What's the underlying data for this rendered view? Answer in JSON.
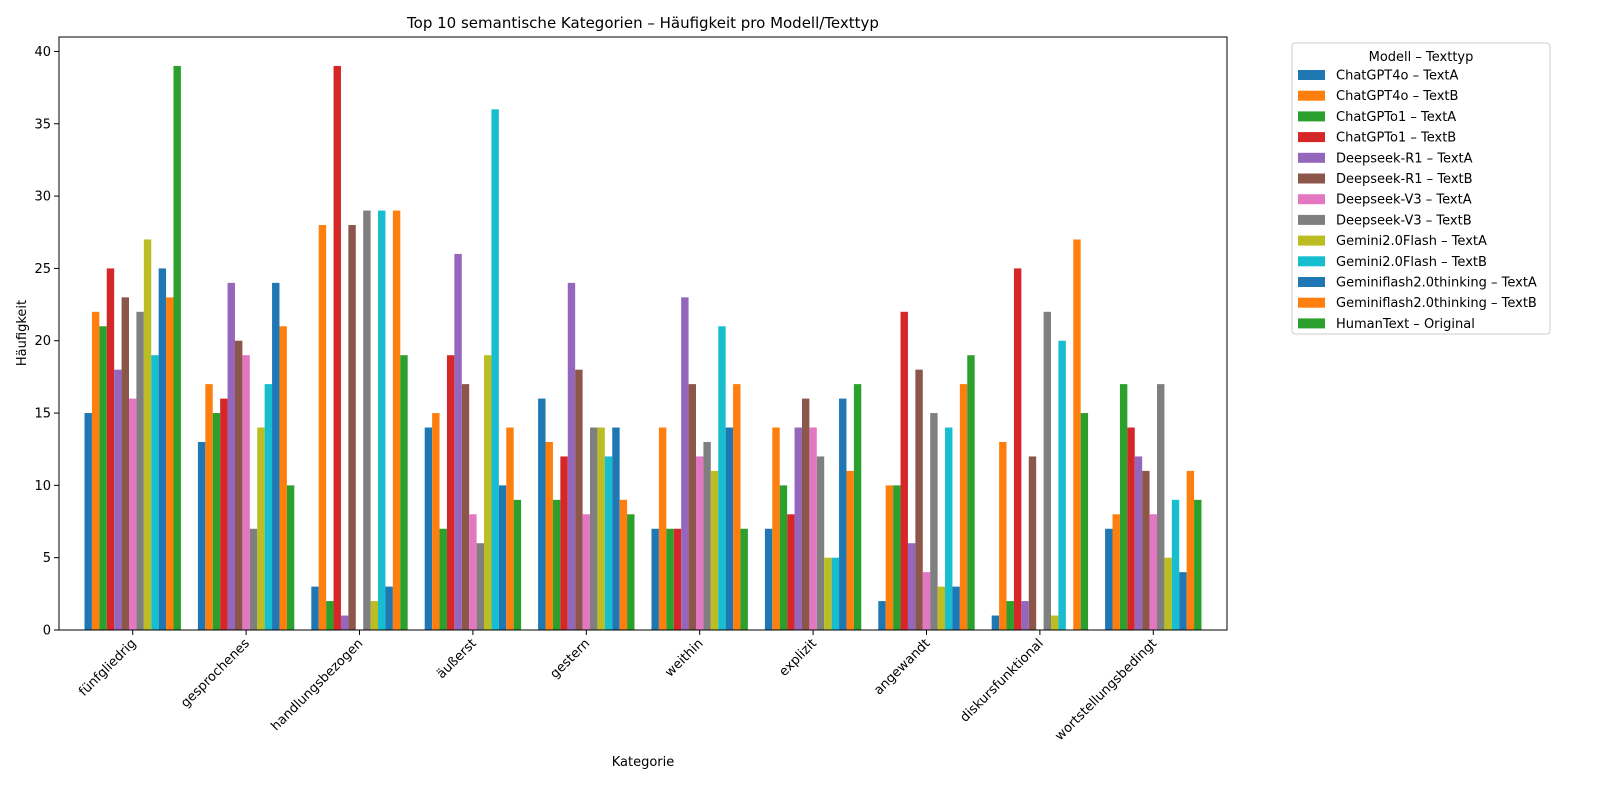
{
  "chart_data": {
    "type": "bar",
    "title": "Top 10 semantische Kategorien – Häufigkeit pro Modell/Texttyp",
    "xlabel": "Kategorie",
    "ylabel": "Häufigkeit",
    "ylim": [
      0,
      41
    ],
    "yticks": [
      0,
      5,
      10,
      15,
      20,
      25,
      30,
      35,
      40
    ],
    "legend_title": "Modell – Texttyp",
    "legend_position": "outside-top-right",
    "grid": false,
    "categories": [
      "fünfgliedrig",
      "gesprochenes",
      "handlungsbezogen",
      "äußerst",
      "gestern",
      "weithin",
      "explizit",
      "angewandt",
      "diskursfunktional",
      "wortstellungsbedingt"
    ],
    "series": [
      {
        "name": "ChatGPT4o – TextA",
        "color": "#1f77b4",
        "values": [
          15,
          13,
          3,
          14,
          16,
          7,
          7,
          2,
          1,
          7
        ]
      },
      {
        "name": "ChatGPT4o – TextB",
        "color": "#ff7f0e",
        "values": [
          22,
          17,
          28,
          15,
          13,
          14,
          14,
          10,
          13,
          8
        ]
      },
      {
        "name": "ChatGPTo1 – TextA",
        "color": "#2ca02c",
        "values": [
          21,
          15,
          2,
          7,
          9,
          7,
          10,
          10,
          2,
          17
        ]
      },
      {
        "name": "ChatGPTo1 – TextB",
        "color": "#d62728",
        "values": [
          25,
          16,
          39,
          19,
          12,
          7,
          8,
          22,
          25,
          14
        ]
      },
      {
        "name": "Deepseek-R1 – TextA",
        "color": "#9467bd",
        "values": [
          18,
          24,
          1,
          26,
          24,
          23,
          14,
          6,
          2,
          12
        ]
      },
      {
        "name": "Deepseek-R1 – TextB",
        "color": "#8c564b",
        "values": [
          23,
          20,
          28,
          17,
          18,
          17,
          16,
          18,
          12,
          11
        ]
      },
      {
        "name": "Deepseek-V3 – TextA",
        "color": "#e377c2",
        "values": [
          16,
          19,
          0,
          8,
          8,
          12,
          14,
          4,
          0,
          8
        ]
      },
      {
        "name": "Deepseek-V3 – TextB",
        "color": "#7f7f7f",
        "values": [
          22,
          7,
          29,
          6,
          14,
          13,
          12,
          15,
          22,
          17
        ]
      },
      {
        "name": "Gemini2.0Flash – TextA",
        "color": "#bcbd22",
        "values": [
          27,
          14,
          2,
          19,
          14,
          11,
          5,
          3,
          1,
          5
        ]
      },
      {
        "name": "Gemini2.0Flash – TextB",
        "color": "#17becf",
        "values": [
          19,
          17,
          29,
          36,
          12,
          21,
          5,
          14,
          20,
          9
        ]
      },
      {
        "name": "Geminiflash2.0thinking – TextA",
        "color": "#1f77b4",
        "values": [
          25,
          24,
          3,
          10,
          14,
          14,
          16,
          3,
          0,
          4
        ]
      },
      {
        "name": "Geminiflash2.0thinking – TextB",
        "color": "#ff7f0e",
        "values": [
          23,
          21,
          29,
          14,
          9,
          17,
          11,
          17,
          27,
          11
        ]
      },
      {
        "name": "HumanText – Original",
        "color": "#2ca02c",
        "values": [
          39,
          10,
          19,
          9,
          8,
          7,
          17,
          19,
          15,
          9
        ]
      }
    ]
  }
}
